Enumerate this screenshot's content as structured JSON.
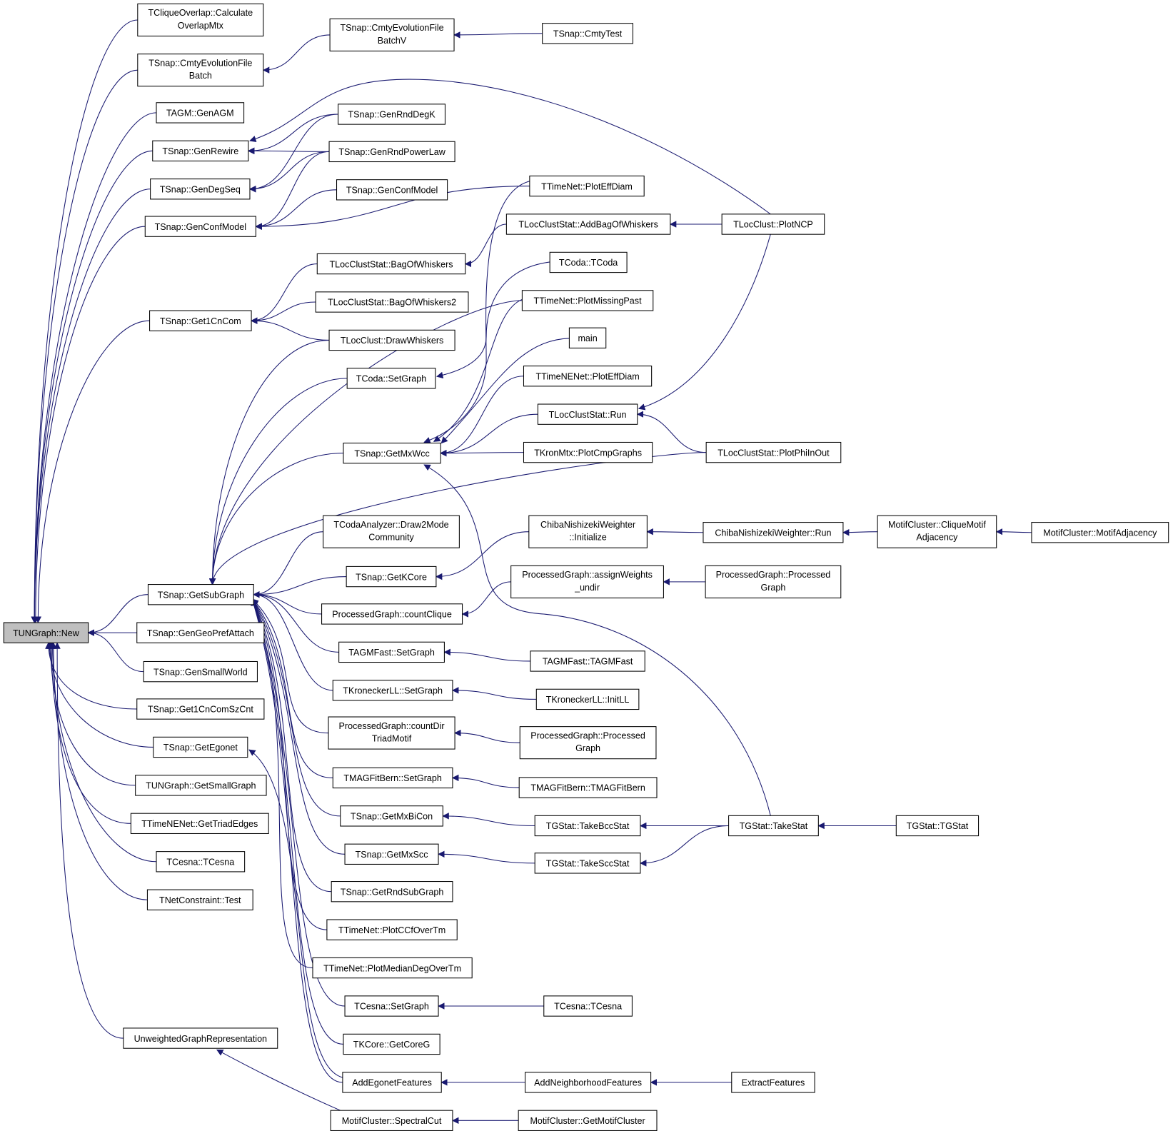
{
  "colors": {
    "edge": "#191970",
    "root_fill": "#bfbfbf",
    "node_fill": "#ffffff",
    "node_border": "#000000"
  },
  "nodes": [
    {
      "lines": [
        "TUNGraph::New"
      ]
    },
    {
      "lines": [
        "TCliqueOverlap::Calculate",
        "OverlapMtx"
      ]
    },
    {
      "lines": [
        "TSnap::CmtyEvolutionFile",
        "Batch"
      ]
    },
    {
      "lines": [
        "TAGM::GenAGM"
      ]
    },
    {
      "lines": [
        "TSnap::GenRewire"
      ]
    },
    {
      "lines": [
        "TSnap::GenDegSeq"
      ]
    },
    {
      "lines": [
        "TSnap::GenConfModel"
      ]
    },
    {
      "lines": [
        "TSnap::Get1CnCom"
      ]
    },
    {
      "lines": [
        "TSnap::GetSubGraph"
      ]
    },
    {
      "lines": [
        "TSnap::GenGeoPrefAttach"
      ]
    },
    {
      "lines": [
        "TSnap::GenSmallWorld"
      ]
    },
    {
      "lines": [
        "TSnap::Get1CnComSzCnt"
      ]
    },
    {
      "lines": [
        "TSnap::GetEgonet"
      ]
    },
    {
      "lines": [
        "TUNGraph::GetSmallGraph"
      ]
    },
    {
      "lines": [
        "TTimeNENet::GetTriadEdges"
      ]
    },
    {
      "lines": [
        "TCesna::TCesna"
      ]
    },
    {
      "lines": [
        "TNetConstraint::Test"
      ]
    },
    {
      "lines": [
        "UnweightedGraphRepresentation"
      ]
    },
    {
      "lines": [
        "TSnap::CmtyEvolutionFile",
        "BatchV"
      ]
    },
    {
      "lines": [
        "TSnap::GenRndDegK"
      ]
    },
    {
      "lines": [
        "TSnap::GenRndPowerLaw"
      ]
    },
    {
      "lines": [
        "TSnap::GenConfModel"
      ]
    },
    {
      "lines": [
        "TLocClustStat::BagOfWhiskers"
      ]
    },
    {
      "lines": [
        "TLocClustStat::BagOfWhiskers2"
      ]
    },
    {
      "lines": [
        "TLocClust::DrawWhiskers"
      ]
    },
    {
      "lines": [
        "TCoda::SetGraph"
      ]
    },
    {
      "lines": [
        "TSnap::GetMxWcc"
      ]
    },
    {
      "lines": [
        "TCodaAnalyzer::Draw2Mode",
        "Community"
      ]
    },
    {
      "lines": [
        "TSnap::GetKCore"
      ]
    },
    {
      "lines": [
        "ProcessedGraph::countClique"
      ]
    },
    {
      "lines": [
        "TAGMFast::SetGraph"
      ]
    },
    {
      "lines": [
        "TKroneckerLL::SetGraph"
      ]
    },
    {
      "lines": [
        "ProcessedGraph::countDir",
        "TriadMotif"
      ]
    },
    {
      "lines": [
        "TMAGFitBern::SetGraph"
      ]
    },
    {
      "lines": [
        "TSnap::GetMxBiCon"
      ]
    },
    {
      "lines": [
        "TSnap::GetMxScc"
      ]
    },
    {
      "lines": [
        "TSnap::GetRndSubGraph"
      ]
    },
    {
      "lines": [
        "TTimeNet::PlotCCfOverTm"
      ]
    },
    {
      "lines": [
        "TTimeNet::PlotMedianDegOverTm"
      ]
    },
    {
      "lines": [
        "TCesna::SetGraph"
      ]
    },
    {
      "lines": [
        "TKCore::GetCoreG"
      ]
    },
    {
      "lines": [
        "AddEgonetFeatures"
      ]
    },
    {
      "lines": [
        "MotifCluster::SpectralCut"
      ]
    },
    {
      "lines": [
        "TSnap::CmtyTest"
      ]
    },
    {
      "lines": [
        "TTimeNet::PlotEffDiam"
      ]
    },
    {
      "lines": [
        "TLocClustStat::AddBagOfWhiskers"
      ]
    },
    {
      "lines": [
        "TCoda::TCoda"
      ]
    },
    {
      "lines": [
        "TTimeNet::PlotMissingPast"
      ]
    },
    {
      "lines": [
        "main"
      ]
    },
    {
      "lines": [
        "TTimeNENet::PlotEffDiam"
      ]
    },
    {
      "lines": [
        "TLocClustStat::Run"
      ]
    },
    {
      "lines": [
        "TKronMtx::PlotCmpGraphs"
      ]
    },
    {
      "lines": [
        "ChibaNishizekiWeighter",
        "::Initialize"
      ]
    },
    {
      "lines": [
        "ProcessedGraph::assignWeights",
        "_undir"
      ]
    },
    {
      "lines": [
        "TAGMFast::TAGMFast"
      ]
    },
    {
      "lines": [
        "TKroneckerLL::InitLL"
      ]
    },
    {
      "lines": [
        "ProcessedGraph::Processed",
        "Graph"
      ]
    },
    {
      "lines": [
        "TMAGFitBern::TMAGFitBern"
      ]
    },
    {
      "lines": [
        "TGStat::TakeBccStat"
      ]
    },
    {
      "lines": [
        "TGStat::TakeSccStat"
      ]
    },
    {
      "lines": [
        "TCesna::TCesna"
      ]
    },
    {
      "lines": [
        "AddNeighborhoodFeatures"
      ]
    },
    {
      "lines": [
        "MotifCluster::GetMotifCluster"
      ]
    },
    {
      "lines": [
        "TLocClust::PlotNCP"
      ]
    },
    {
      "lines": [
        "TLocClustStat::PlotPhiInOut"
      ]
    },
    {
      "lines": [
        "ChibaNishizekiWeighter::Run"
      ]
    },
    {
      "lines": [
        "ProcessedGraph::Processed",
        "Graph"
      ]
    },
    {
      "lines": [
        "TGStat::TakeStat"
      ]
    },
    {
      "lines": [
        "ExtractFeatures"
      ]
    },
    {
      "lines": [
        "MotifCluster::CliqueMotif",
        "Adjacency"
      ]
    },
    {
      "lines": [
        "TGStat::TGStat"
      ]
    },
    {
      "lines": [
        "MotifCluster::MotifAdjacency"
      ]
    }
  ],
  "edges": [
    [
      1,
      0
    ],
    [
      2,
      0
    ],
    [
      3,
      0
    ],
    [
      4,
      0
    ],
    [
      5,
      0
    ],
    [
      6,
      0
    ],
    [
      7,
      0
    ],
    [
      8,
      0
    ],
    [
      9,
      0
    ],
    [
      10,
      0
    ],
    [
      11,
      0
    ],
    [
      12,
      0
    ],
    [
      13,
      0
    ],
    [
      14,
      0
    ],
    [
      15,
      0
    ],
    [
      16,
      0
    ],
    [
      17,
      0
    ],
    [
      18,
      2
    ],
    [
      43,
      18
    ],
    [
      19,
      4
    ],
    [
      20,
      4
    ],
    [
      63,
      4
    ],
    [
      19,
      5
    ],
    [
      20,
      5
    ],
    [
      21,
      6
    ],
    [
      20,
      6
    ],
    [
      44,
      6
    ],
    [
      22,
      7
    ],
    [
      23,
      7
    ],
    [
      24,
      7
    ],
    [
      45,
      22
    ],
    [
      63,
      45
    ],
    [
      24,
      8
    ],
    [
      25,
      8
    ],
    [
      47,
      8
    ],
    [
      26,
      8
    ],
    [
      64,
      8
    ],
    [
      27,
      8
    ],
    [
      28,
      8
    ],
    [
      29,
      8
    ],
    [
      30,
      8
    ],
    [
      31,
      8
    ],
    [
      32,
      8
    ],
    [
      33,
      8
    ],
    [
      34,
      8
    ],
    [
      35,
      8
    ],
    [
      36,
      8
    ],
    [
      37,
      8
    ],
    [
      38,
      8
    ],
    [
      39,
      8
    ],
    [
      40,
      8
    ],
    [
      41,
      8
    ],
    [
      46,
      25
    ],
    [
      44,
      26
    ],
    [
      47,
      26
    ],
    [
      48,
      26
    ],
    [
      49,
      26
    ],
    [
      50,
      26
    ],
    [
      51,
      26
    ],
    [
      67,
      26
    ],
    [
      63,
      50
    ],
    [
      64,
      50
    ],
    [
      52,
      28
    ],
    [
      65,
      52
    ],
    [
      69,
      65
    ],
    [
      71,
      69
    ],
    [
      53,
      29
    ],
    [
      66,
      53
    ],
    [
      54,
      30
    ],
    [
      55,
      31
    ],
    [
      56,
      32
    ],
    [
      57,
      33
    ],
    [
      58,
      34
    ],
    [
      59,
      35
    ],
    [
      67,
      58
    ],
    [
      67,
      59
    ],
    [
      70,
      67
    ],
    [
      60,
      39
    ],
    [
      61,
      41
    ],
    [
      68,
      61
    ],
    [
      62,
      42
    ],
    [
      42,
      17
    ],
    [
      41,
      12
    ]
  ]
}
